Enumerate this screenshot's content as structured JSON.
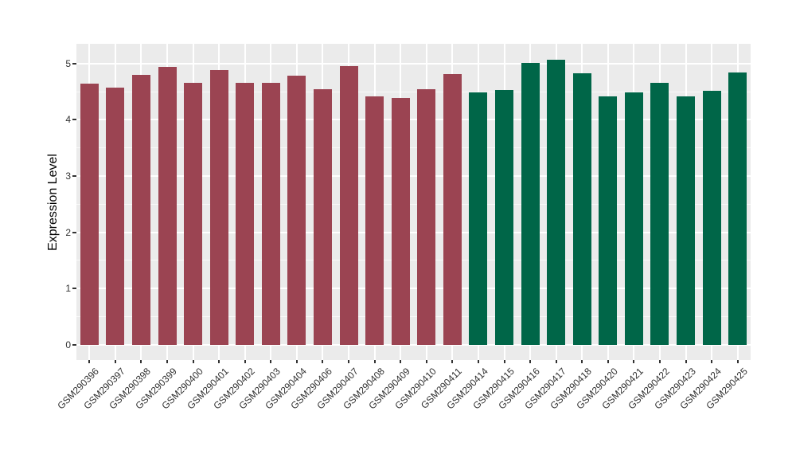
{
  "figure": {
    "background": "#FFFFFF",
    "panel_background": "#EBEBEB",
    "grid_major_color": "#FFFFFF",
    "grid_minor_color": "#F5F5F5",
    "axis_text_color": "#333333",
    "axis_title_color": "#000000"
  },
  "chart_data": {
    "type": "bar",
    "xlabel": "",
    "ylabel": "Expression Level",
    "ylim": [
      -0.27,
      5.35
    ],
    "yticks": [
      0,
      1,
      2,
      3,
      4,
      5
    ],
    "yticks_minor": [
      0.5,
      1.5,
      2.5,
      3.5,
      4.5
    ],
    "grid": "on",
    "legend": "none",
    "categories": [
      "GSM290396",
      "GSM290397",
      "GSM290398",
      "GSM290399",
      "GSM290400",
      "GSM290401",
      "GSM290402",
      "GSM290403",
      "GSM290404",
      "GSM290406",
      "GSM290407",
      "GSM290408",
      "GSM290409",
      "GSM290410",
      "GSM290411",
      "GSM290414",
      "GSM290415",
      "GSM290416",
      "GSM290417",
      "GSM290418",
      "GSM290420",
      "GSM290421",
      "GSM290422",
      "GSM290423",
      "GSM290424",
      "GSM290425"
    ],
    "values": [
      4.64,
      4.57,
      4.8,
      4.94,
      4.66,
      4.88,
      4.66,
      4.66,
      4.78,
      4.54,
      4.95,
      4.42,
      4.39,
      4.54,
      4.81,
      4.48,
      4.53,
      5.01,
      5.07,
      4.82,
      4.42,
      4.48,
      4.65,
      4.41,
      4.51,
      4.84
    ],
    "bar_color_groups": [
      {
        "color": "#9B4452",
        "from": 0,
        "to": 14
      },
      {
        "color": "#006648",
        "from": 15,
        "to": 25
      }
    ]
  }
}
